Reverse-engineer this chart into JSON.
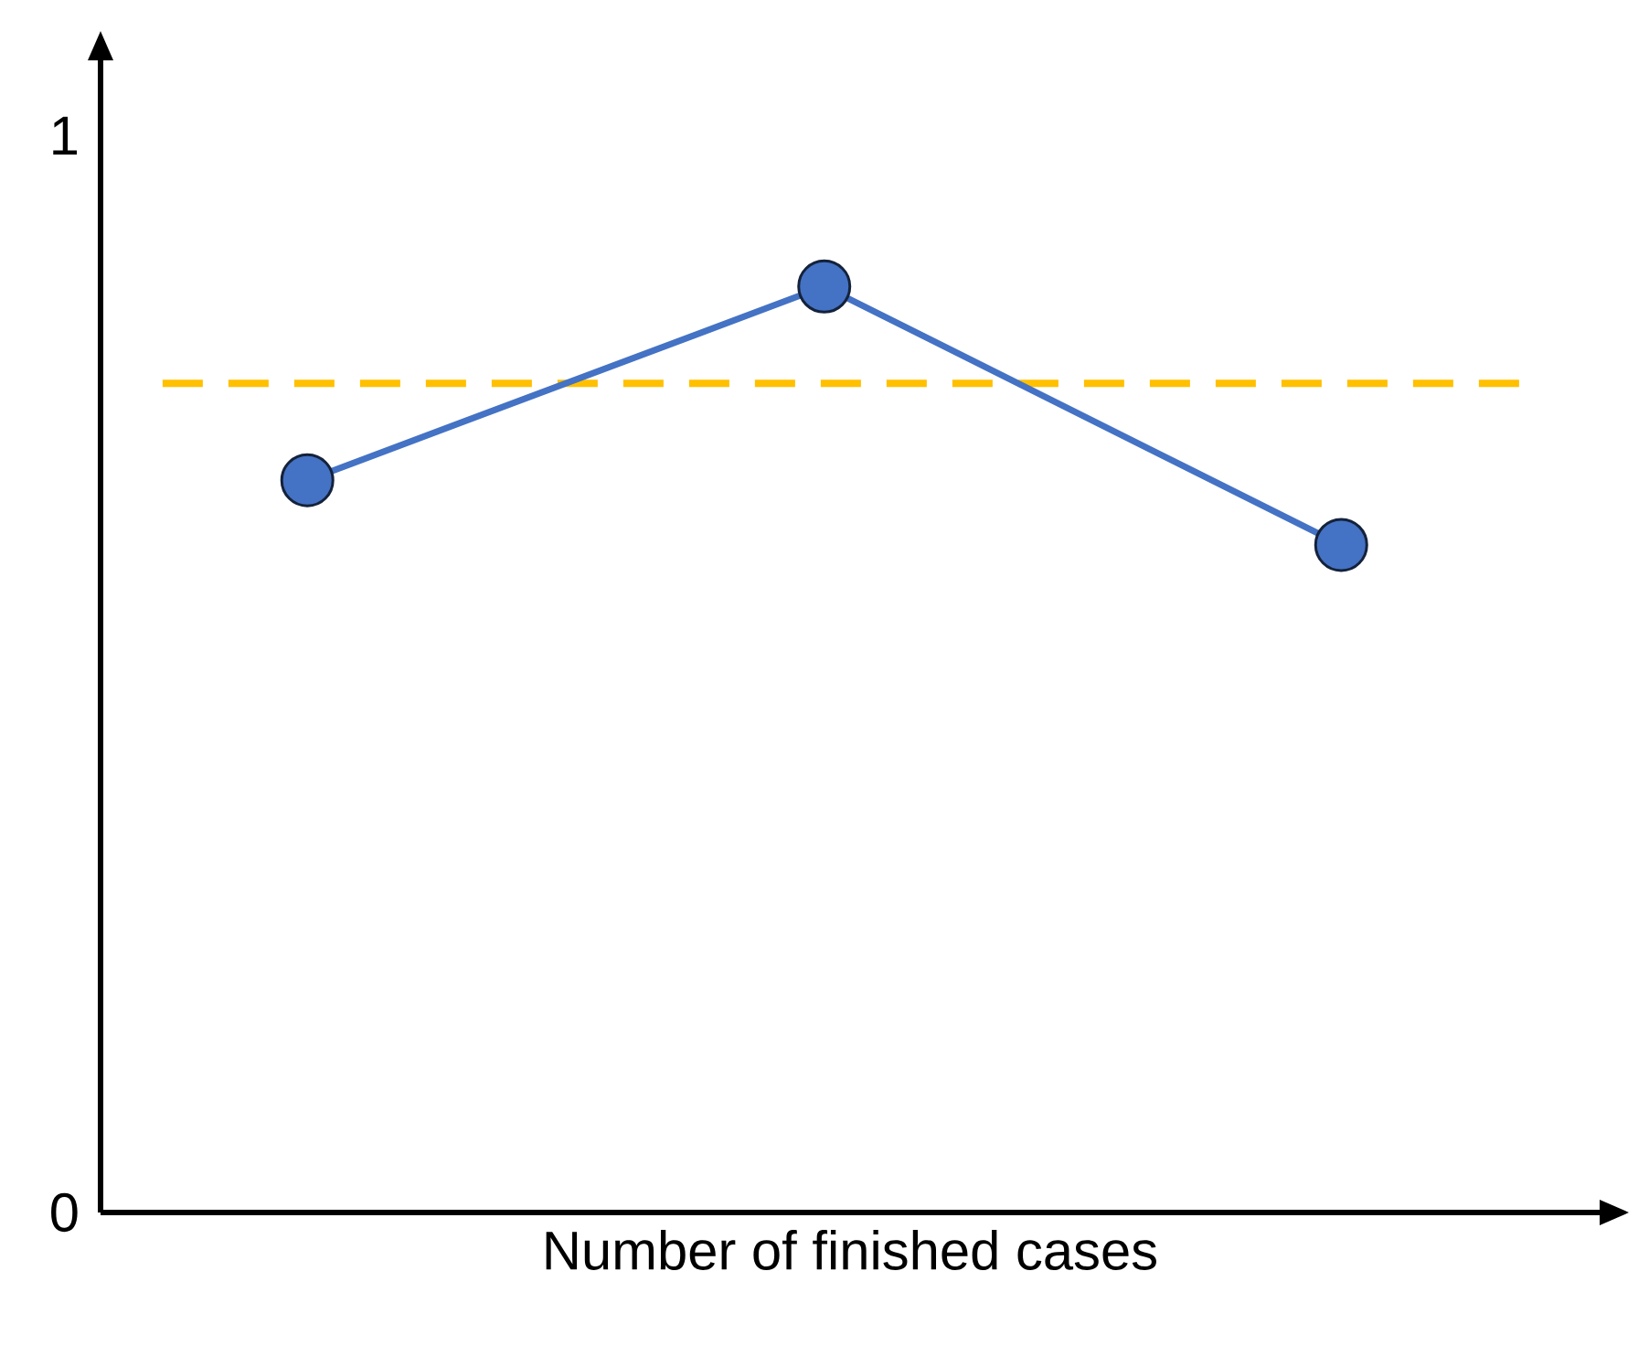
{
  "chart_data": {
    "type": "line",
    "xlabel": "Number of finished cases",
    "categories": [
      null,
      null,
      null
    ],
    "series": [
      {
        "color": "#4472c4",
        "values": [
          0.68,
          0.86,
          0.62
        ]
      }
    ],
    "marker": "circle",
    "line_style": "solid",
    "ylim": [
      0,
      1.07
    ],
    "yticks": [
      0,
      1
    ],
    "grid": false,
    "ref_lines": [
      {
        "axis": "y",
        "value": 0.77,
        "label": null,
        "color": "#ffc000",
        "line_style": "dashed"
      }
    ]
  }
}
